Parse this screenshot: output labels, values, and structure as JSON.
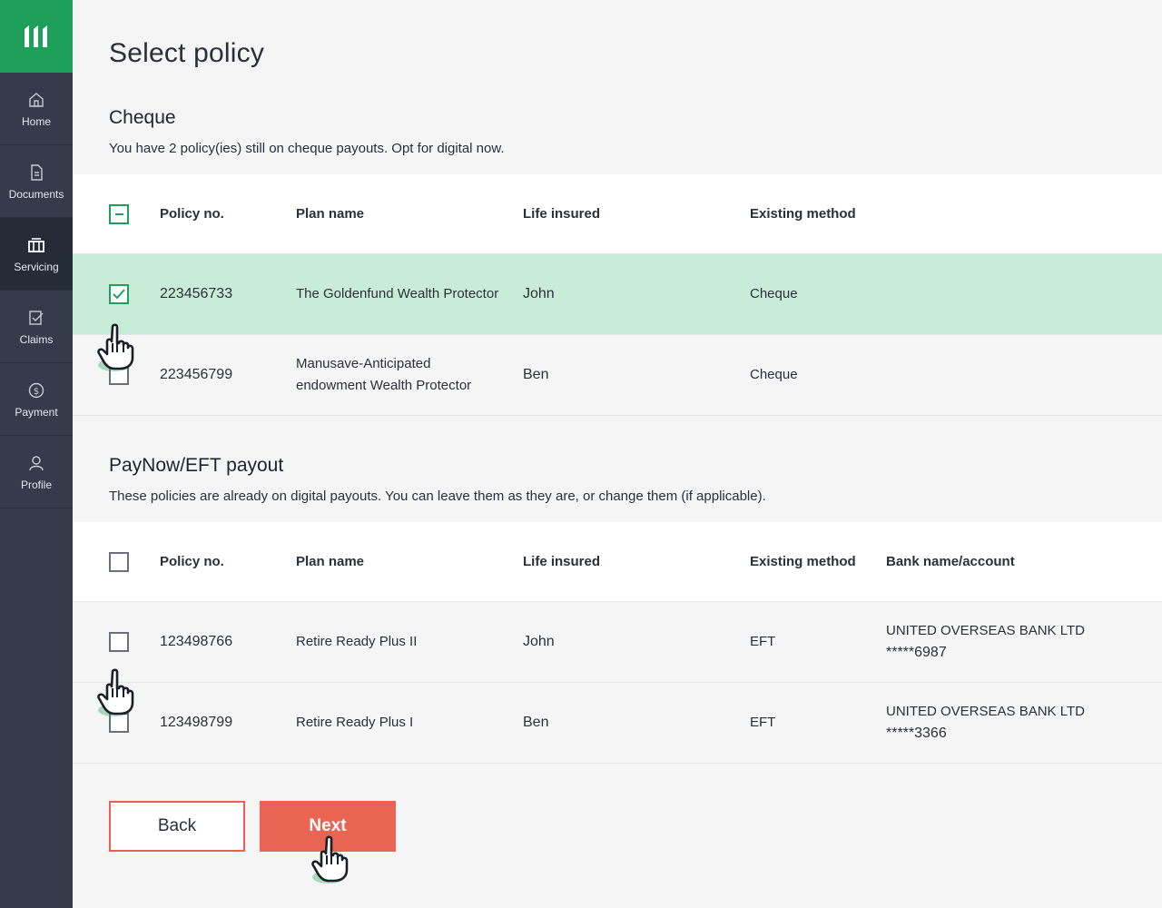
{
  "sidebar": {
    "items": [
      {
        "label": "Home",
        "icon": "home-icon"
      },
      {
        "label": "Documents",
        "icon": "document-icon"
      },
      {
        "label": "Servicing",
        "icon": "servicing-icon",
        "active": true
      },
      {
        "label": "Claims",
        "icon": "claims-icon"
      },
      {
        "label": "Payment",
        "icon": "payment-icon"
      },
      {
        "label": "Profile",
        "icon": "profile-icon"
      }
    ]
  },
  "page": {
    "title": "Select policy"
  },
  "cheque": {
    "title": "Cheque",
    "description": "You have 2 policy(ies) still on cheque payouts. Opt for digital now.",
    "headers": {
      "policy": "Policy no.",
      "plan": "Plan name",
      "life": "Life insured",
      "method": "Existing method"
    },
    "rows": [
      {
        "policy": "223456733",
        "plan": "The Goldenfund Wealth Protector",
        "life": "John",
        "method": "Cheque",
        "checked": true
      },
      {
        "policy": "223456799",
        "plan": "Manusave-Anticipated endowment Wealth Protector",
        "life": "Ben",
        "method": "Cheque",
        "checked": false
      }
    ]
  },
  "paynow": {
    "title": "PayNow/EFT payout",
    "description": "These policies are already on digital payouts. You can leave them as they are, or change them (if applicable).",
    "headers": {
      "policy": "Policy no.",
      "plan": "Plan name",
      "life": "Life insured",
      "method": "Existing method",
      "bank": "Bank name/account"
    },
    "rows": [
      {
        "policy": "123498766",
        "plan": "Retire Ready Plus II",
        "life": "John",
        "method": "EFT",
        "bank_name": "UNITED OVERSEAS BANK LTD",
        "bank_account": "*****6987",
        "checked": false
      },
      {
        "policy": "123498799",
        "plan": "Retire Ready Plus I",
        "life": "Ben",
        "method": "EFT",
        "bank_name": "UNITED OVERSEAS BANK LTD",
        "bank_account": "*****3366",
        "checked": false
      }
    ]
  },
  "buttons": {
    "back": "Back",
    "next": "Next"
  },
  "colors": {
    "brand_green": "#1ea05a",
    "sidebar_bg": "#353b4b",
    "selected_row": "#c9ecd9",
    "accent_red": "#ea6454"
  }
}
